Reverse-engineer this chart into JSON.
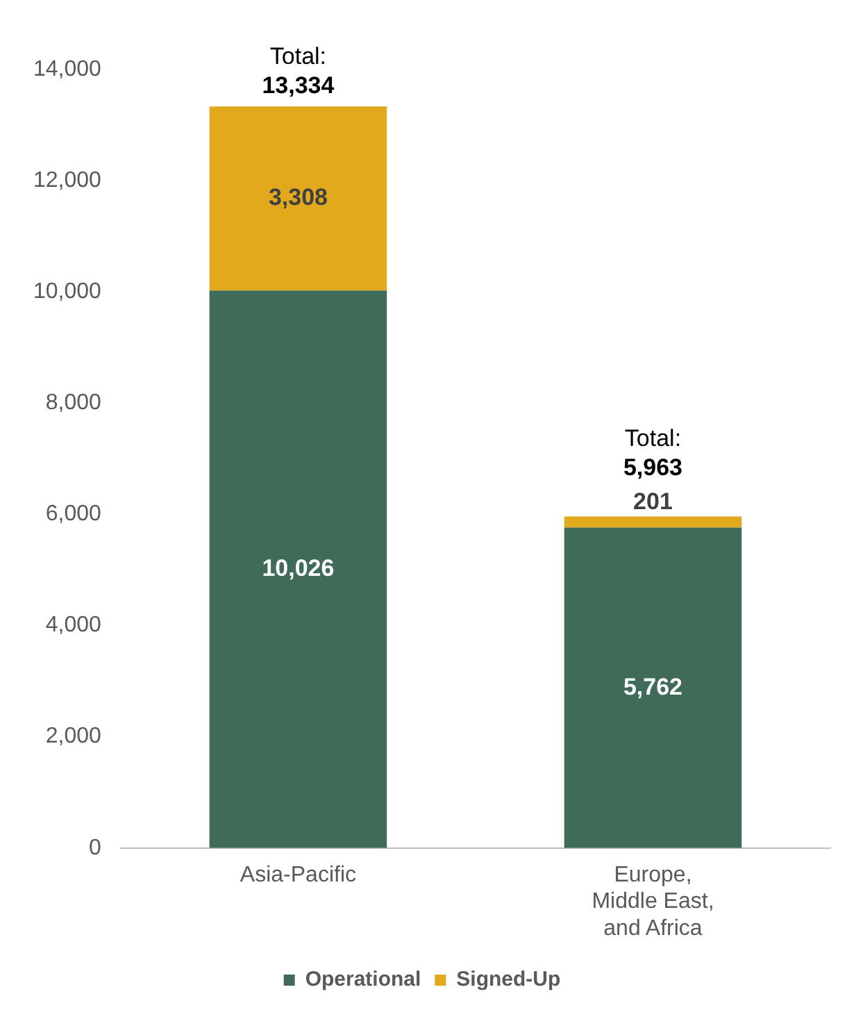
{
  "chart_data": {
    "type": "bar",
    "stacked": true,
    "categories": [
      "Asia-Pacific",
      "Europe, Middle East, and Africa"
    ],
    "series": [
      {
        "name": "Operational",
        "color": "#3f6b58",
        "values": [
          10026,
          5762
        ],
        "value_labels": [
          "10,026",
          "5,762"
        ]
      },
      {
        "name": "Signed-Up",
        "color": "#e3a91c",
        "values": [
          3308,
          201
        ],
        "value_labels": [
          "3,308",
          "201"
        ]
      }
    ],
    "ylim": [
      0,
      14000
    ],
    "yticks": [
      0,
      {
        "value": 2000,
        "label": "2,000"
      },
      {
        "value": 4000,
        "label": "4,000"
      },
      {
        "value": 6000,
        "label": "6,000"
      },
      {
        "value": 8000,
        "label": "8,000"
      },
      {
        "value": 10000,
        "label": "10,000"
      },
      {
        "value": 12000,
        "label": "12,000"
      },
      {
        "value": 14000,
        "label": "14,000"
      }
    ],
    "totals": [
      "Total: 13,334",
      "Total: 5,963"
    ],
    "grid": false,
    "legend": "bottom"
  }
}
